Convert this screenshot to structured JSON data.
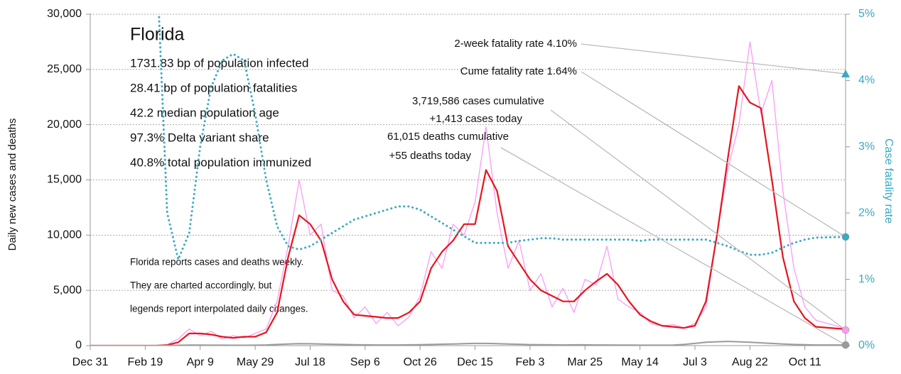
{
  "chart_data": {
    "type": "line",
    "ylabel": "Daily new cases and deaths",
    "y2label": "Case fatality rate",
    "x": [
      0,
      10,
      20,
      30,
      40,
      50,
      60,
      70,
      80,
      90,
      100,
      110,
      120,
      130,
      140,
      150,
      160,
      170,
      180,
      190,
      200,
      210,
      220,
      230,
      240,
      250,
      260,
      270,
      280,
      290,
      300,
      310,
      320,
      330,
      340,
      350,
      360,
      370,
      380,
      390,
      400,
      410,
      420,
      430,
      440,
      450,
      460,
      470,
      480,
      490,
      500,
      510,
      520,
      530,
      540,
      550,
      560,
      570,
      580,
      590,
      600,
      610,
      620,
      630,
      640,
      650,
      660,
      685
    ],
    "xlim": [
      0,
      687
    ],
    "xticks": [
      {
        "value": 0,
        "label": "Dec 31"
      },
      {
        "value": 50,
        "label": "Feb 19"
      },
      {
        "value": 100,
        "label": "Apr 9"
      },
      {
        "value": 150,
        "label": "May 29"
      },
      {
        "value": 200,
        "label": "Jul 18"
      },
      {
        "value": 250,
        "label": "Sep 6"
      },
      {
        "value": 300,
        "label": "Oct 26"
      },
      {
        "value": 350,
        "label": "Dec 15"
      },
      {
        "value": 400,
        "label": "Feb 3"
      },
      {
        "value": 450,
        "label": "Mar 25"
      },
      {
        "value": 500,
        "label": "May 14"
      },
      {
        "value": 550,
        "label": "Jul 3"
      },
      {
        "value": 600,
        "label": "Aug 22"
      },
      {
        "value": 650,
        "label": "Oct 11"
      }
    ],
    "ylim": [
      0,
      30000
    ],
    "yticks": [
      0,
      {
        "value": 5000,
        "label": "5,000"
      },
      {
        "value": 10000,
        "label": "10,000"
      },
      {
        "value": 15000,
        "label": "15,000"
      },
      {
        "value": 20000,
        "label": "20,000"
      },
      {
        "value": 25000,
        "label": "25,000"
      },
      {
        "value": 30000,
        "label": "30,000"
      }
    ],
    "y2lim": [
      0,
      5
    ],
    "y2ticks": [
      {
        "value": 0,
        "label": "0%"
      },
      {
        "value": 1,
        "label": "1%"
      },
      {
        "value": 2,
        "label": "2%"
      },
      {
        "value": 3,
        "label": "3%"
      },
      {
        "value": 4,
        "label": "4%"
      },
      {
        "value": 5,
        "label": "5%"
      }
    ],
    "grid": true,
    "series": [
      {
        "color": "#f99cf5",
        "width": 1.3,
        "style": "solid",
        "values": [
          0,
          0,
          0,
          0,
          0,
          0,
          0,
          100,
          600,
          1500,
          900,
          1300,
          600,
          900,
          700,
          1100,
          1500,
          4000,
          9000,
          15000,
          10000,
          11000,
          5000,
          4500,
          2500,
          3500,
          2000,
          3000,
          1800,
          2600,
          4500,
          8500,
          7000,
          11000,
          10000,
          13000,
          19800,
          12000,
          7000,
          9500,
          5000,
          6500,
          3500,
          5200,
          3000,
          6000,
          5500,
          9000,
          4200,
          3500,
          3000,
          2000,
          1800,
          1900,
          1600,
          2000,
          3500,
          10000,
          16000,
          20000,
          27500,
          21000,
          24000,
          14000,
          7000,
          3500,
          2300,
          1600
        ]
      },
      {
        "color": "#e8141c",
        "width": 2.2,
        "style": "solid",
        "values": [
          0,
          0,
          0,
          0,
          0,
          0,
          0,
          50,
          300,
          1100,
          1100,
          1000,
          800,
          700,
          800,
          800,
          1200,
          3000,
          8000,
          11800,
          11000,
          9500,
          6000,
          4000,
          2800,
          2700,
          2600,
          2500,
          2500,
          3000,
          4000,
          7000,
          8500,
          9500,
          11000,
          11000,
          15900,
          14000,
          9000,
          7500,
          6000,
          5000,
          4500,
          4000,
          4000,
          5000,
          5800,
          6500,
          5500,
          4000,
          2800,
          2200,
          1800,
          1700,
          1600,
          1800,
          4000,
          10000,
          17000,
          23500,
          22000,
          21500,
          15000,
          8000,
          4000,
          2500,
          1700,
          1500
        ]
      },
      {
        "color": "#9a9a9a",
        "width": 2,
        "style": "solid",
        "values": [
          0,
          0,
          0,
          0,
          0,
          0,
          0,
          10,
          30,
          50,
          50,
          40,
          40,
          30,
          30,
          40,
          60,
          100,
          150,
          180,
          170,
          150,
          120,
          100,
          80,
          70,
          60,
          60,
          60,
          70,
          80,
          100,
          130,
          150,
          180,
          200,
          200,
          180,
          150,
          120,
          90,
          80,
          70,
          60,
          70,
          70,
          60,
          60,
          50,
          50,
          40,
          40,
          40,
          50,
          100,
          200,
          300,
          350,
          380,
          350,
          300,
          250,
          200,
          150,
          100,
          80,
          60,
          55
        ]
      },
      {
        "color": "#3aa9c1",
        "width": 3,
        "style": "dotted",
        "axis": "y2",
        "values": [
          null,
          null,
          null,
          null,
          null,
          null,
          6,
          2,
          1.3,
          1.7,
          3,
          3.9,
          4.3,
          4.4,
          4.3,
          3.5,
          2.5,
          1.8,
          1.5,
          1.45,
          1.5,
          1.6,
          1.7,
          1.8,
          1.9,
          1.95,
          2.0,
          2.05,
          2.1,
          2.1,
          2.05,
          1.95,
          1.85,
          1.75,
          1.65,
          1.55,
          1.55,
          1.55,
          1.55,
          1.58,
          1.6,
          1.62,
          1.62,
          1.6,
          1.6,
          1.6,
          1.6,
          1.6,
          1.6,
          1.6,
          1.58,
          1.6,
          1.6,
          1.6,
          1.6,
          1.6,
          1.6,
          1.55,
          1.5,
          1.43,
          1.37,
          1.37,
          1.4,
          1.48,
          1.55,
          1.6,
          1.63,
          1.64
        ]
      }
    ],
    "info_title": "Florida",
    "info_lines": [
      "1731.83 bp of population infected",
      "28.41 bp of population fatalities",
      "42.2 median population age",
      "97.3% Delta variant share",
      "40.8% total population immunized"
    ],
    "note_lines": [
      "Florida reports cases and deaths weekly.",
      "They are charted accordingly, but",
      "legends report interpolated daily changes."
    ],
    "callouts": [
      {
        "lines": [
          "2-week fatality rate 4.10%"
        ],
        "value": 4.1,
        "axis": "y2",
        "marker": "triangle",
        "color": "#3aa9c1"
      },
      {
        "lines": [
          "Cume fatality rate 1.64%"
        ],
        "value": 1.64,
        "axis": "y2",
        "marker": "circle",
        "color": "#3aa9c1"
      },
      {
        "lines": [
          "3,719,586 cases cumulative",
          "+1,413 cases today"
        ],
        "value": 1413,
        "marker": "circle",
        "color": "#f99cf5"
      },
      {
        "lines": [
          "61,015 deaths cumulative",
          "+55 deaths today"
        ],
        "value": 55,
        "marker": "circle",
        "color": "#9a9a9a"
      }
    ]
  }
}
